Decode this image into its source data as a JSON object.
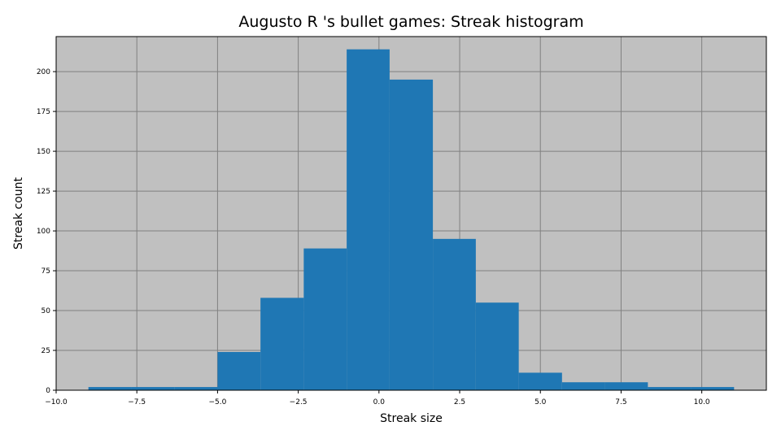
{
  "chart_data": {
    "type": "bar",
    "title": "Augusto R 's bullet games: Streak histogram",
    "xlabel": "Streak size",
    "ylabel": "Streak count",
    "xlim": [
      -10.0,
      12.0
    ],
    "ylim": [
      0,
      222
    ],
    "xticks": [
      -10.0,
      -7.5,
      -5.0,
      -2.5,
      0.0,
      2.5,
      5.0,
      7.5,
      10.0
    ],
    "xtick_labels": [
      "−10.0",
      "−7.5",
      "−5.0",
      "−2.5",
      "0.0",
      "2.5",
      "5.0",
      "7.5",
      "10.0"
    ],
    "yticks": [
      0,
      25,
      50,
      75,
      100,
      125,
      150,
      175,
      200
    ],
    "ytick_labels": [
      "0",
      "25",
      "50",
      "75",
      "100",
      "125",
      "150",
      "175",
      "200"
    ],
    "bin_edges": [
      -9.0,
      -7.67,
      -6.33,
      -5.0,
      -3.67,
      -2.33,
      -1.0,
      0.33,
      1.67,
      3.0,
      4.33,
      5.67,
      7.0,
      8.33,
      9.67,
      11.0
    ],
    "counts": [
      2,
      2,
      2,
      24,
      58,
      89,
      214,
      195,
      95,
      55,
      11,
      5,
      5,
      2,
      2
    ],
    "grid": true,
    "bar_color": "#1f77b4",
    "plot_background": "#c0c0c0",
    "grid_color": "#808080"
  }
}
